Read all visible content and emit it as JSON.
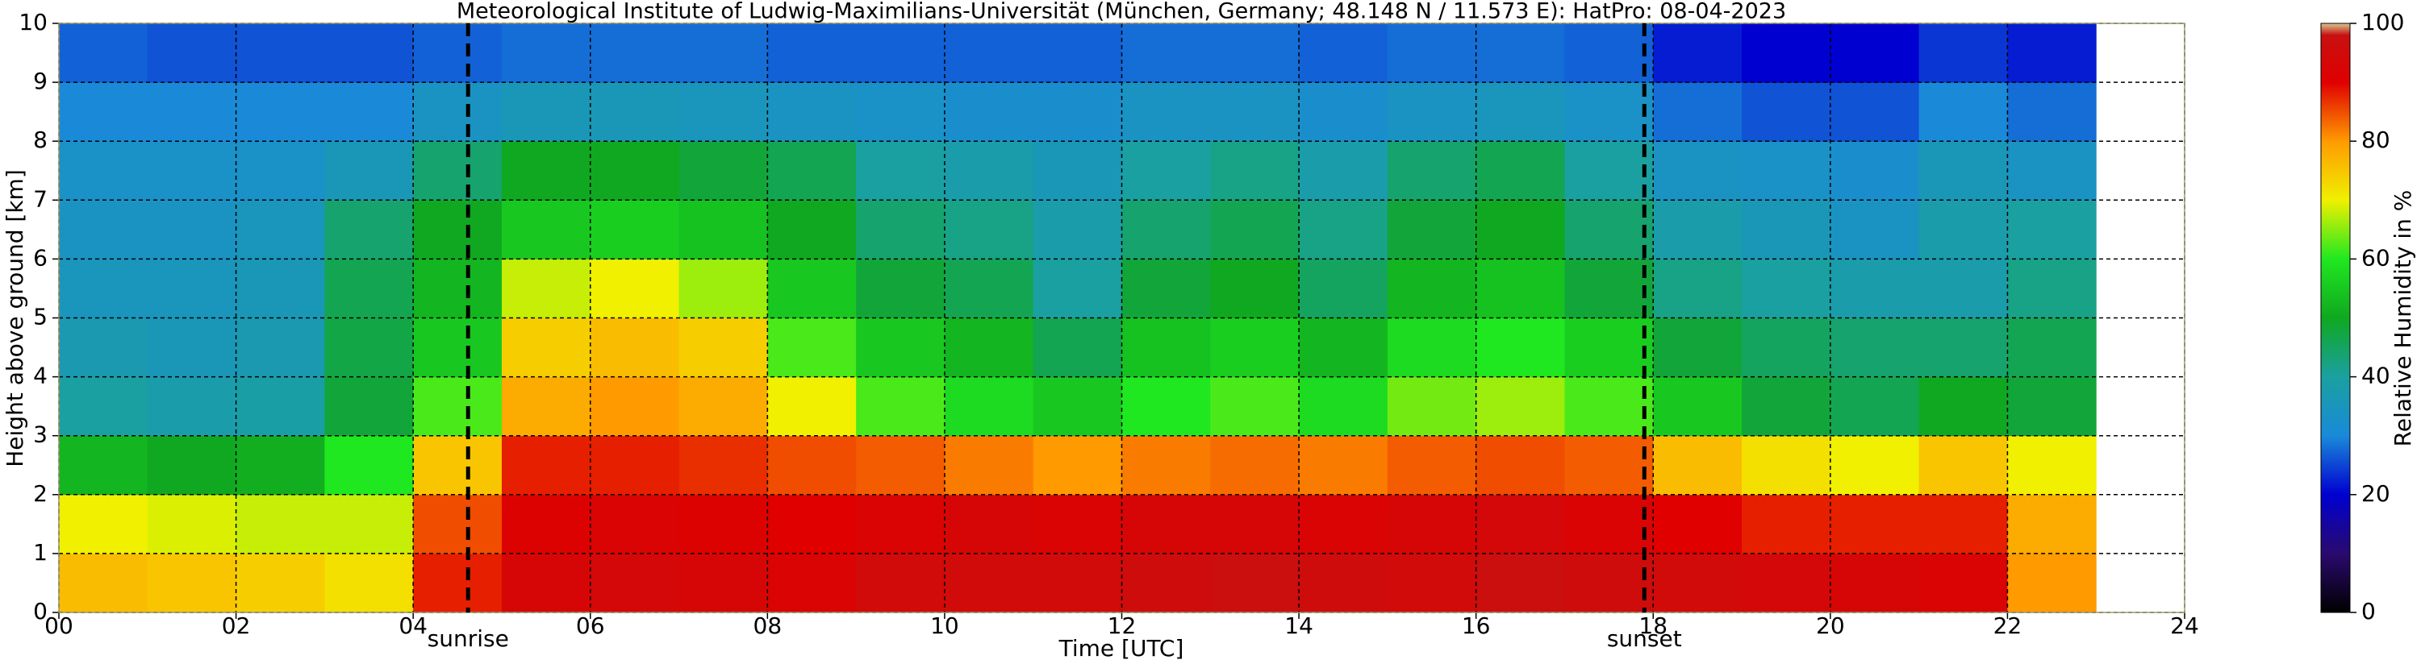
{
  "chart_data": {
    "type": "heatmap",
    "title": "Meteorological Institute of Ludwig-Maximilians-Universität (München, Germany; 48.148 N / 11.573 E):    HatPro: 08-04-2023",
    "xlabel": "Time [UTC]",
    "ylabel": "Height above ground [km]",
    "colorbar_label": "Relative Humidity in %",
    "xlim": [
      0,
      24
    ],
    "xticks": [
      {
        "value": 0,
        "label": "00"
      },
      {
        "value": 2,
        "label": "02"
      },
      {
        "value": 4,
        "label": "04"
      },
      {
        "value": 6,
        "label": "06"
      },
      {
        "value": 8,
        "label": "08"
      },
      10,
      12,
      14,
      16,
      18,
      20,
      22,
      24
    ],
    "ylim": [
      0,
      10
    ],
    "yticks": [
      0,
      1,
      2,
      3,
      4,
      5,
      6,
      7,
      8,
      9,
      10
    ],
    "clim": [
      0,
      100
    ],
    "cticks": [
      0,
      20,
      40,
      60,
      80,
      100
    ],
    "colorscale": [
      [
        0,
        "#000000"
      ],
      [
        10,
        "#2a0a6e"
      ],
      [
        20,
        "#0000d0"
      ],
      [
        30,
        "#1a8ad8"
      ],
      [
        40,
        "#1aa0a0"
      ],
      [
        50,
        "#10a820"
      ],
      [
        60,
        "#20e820"
      ],
      [
        70,
        "#f0f000"
      ],
      [
        80,
        "#ff9a00"
      ],
      [
        90,
        "#e00000"
      ],
      [
        98,
        "#c81010"
      ],
      [
        100,
        "#d8c890"
      ]
    ],
    "grid": true,
    "x": [
      0,
      1,
      2,
      3,
      4,
      5,
      6,
      7,
      8,
      9,
      10,
      11,
      12,
      13,
      14,
      15,
      16,
      17,
      18,
      19,
      20,
      21,
      22,
      23
    ],
    "y": [
      0,
      1,
      2,
      3,
      4,
      5,
      6,
      7,
      8,
      9,
      10
    ],
    "z": [
      [
        76,
        75,
        74,
        72,
        88,
        93,
        94,
        93,
        92,
        95,
        95,
        95,
        96,
        97,
        96,
        95,
        97,
        96,
        95,
        94,
        93,
        92,
        80
      ],
      [
        70,
        69,
        68,
        68,
        85,
        91,
        92,
        91,
        90,
        92,
        93,
        92,
        93,
        93,
        92,
        93,
        94,
        92,
        90,
        88,
        88,
        88,
        78
      ],
      [
        52,
        50,
        51,
        60,
        75,
        88,
        88,
        87,
        85,
        84,
        82,
        80,
        82,
        83,
        82,
        84,
        85,
        84,
        76,
        72,
        70,
        75,
        70
      ],
      [
        40,
        38,
        39,
        48,
        62,
        78,
        80,
        78,
        70,
        62,
        58,
        55,
        60,
        62,
        58,
        64,
        66,
        62,
        55,
        48,
        46,
        50,
        48
      ],
      [
        37,
        36,
        37,
        47,
        55,
        74,
        76,
        74,
        62,
        55,
        52,
        46,
        54,
        56,
        52,
        58,
        60,
        56,
        48,
        45,
        44,
        44,
        46
      ],
      [
        35,
        35,
        36,
        46,
        52,
        68,
        70,
        66,
        55,
        48,
        46,
        40,
        48,
        50,
        45,
        52,
        54,
        48,
        42,
        40,
        38,
        38,
        42
      ],
      [
        34,
        34,
        35,
        44,
        50,
        55,
        56,
        54,
        50,
        44,
        42,
        38,
        44,
        46,
        42,
        48,
        50,
        44,
        38,
        36,
        34,
        38,
        40
      ],
      [
        33,
        33,
        33,
        36,
        44,
        50,
        50,
        48,
        46,
        40,
        38,
        36,
        40,
        42,
        38,
        44,
        46,
        40,
        34,
        33,
        32,
        36,
        34
      ],
      [
        30,
        30,
        30,
        30,
        34,
        36,
        36,
        35,
        34,
        33,
        32,
        32,
        34,
        34,
        32,
        34,
        35,
        33,
        28,
        26,
        26,
        30,
        28
      ],
      [
        27,
        26,
        26,
        26,
        27,
        28,
        28,
        28,
        27,
        27,
        27,
        27,
        28,
        28,
        27,
        28,
        28,
        27,
        22,
        20,
        20,
        24,
        22
      ]
    ],
    "annotations": [
      {
        "x": 4.62,
        "text": "sunrise"
      },
      {
        "x": 17.9,
        "text": "sunset"
      }
    ]
  }
}
